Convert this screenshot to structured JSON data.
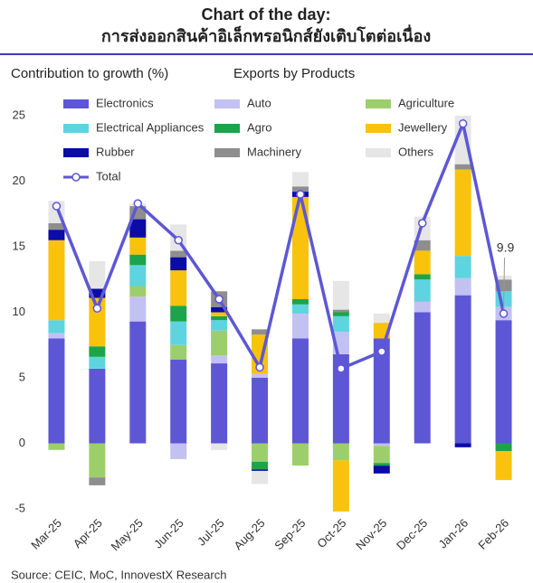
{
  "chart_data": {
    "type": "bar",
    "stacked": true,
    "title": "Chart of the day:",
    "subtitle": "การส่งออกสินค้าอิเล็กทรอนิกส์ยังเติบโตต่อเนื่อง",
    "ylabel": "Contribution to growth (%)",
    "caption": "Exports by Products",
    "source": "Source: CEIC, MoC, InnovestX Research",
    "categories": [
      "Mar-25",
      "Apr-25",
      "May-25",
      "Jun-25",
      "Jul-25",
      "Aug-25",
      "Sep-25",
      "Oct-25",
      "Nov-25",
      "Dec-25",
      "Jan-26",
      "Feb-26"
    ],
    "ylim": [
      -5,
      25
    ],
    "yticks": [
      -5,
      0,
      5,
      10,
      15,
      20,
      25
    ],
    "series": [
      {
        "name": "Electronics",
        "color": "#5d57d6",
        "values": [
          8.0,
          5.7,
          9.3,
          6.4,
          6.1,
          5.0,
          8.0,
          6.8,
          8.0,
          10.0,
          11.3,
          9.4
        ]
      },
      {
        "name": "Auto",
        "color": "#c3c0f2",
        "values": [
          0.4,
          0,
          1.9,
          -1.2,
          0.6,
          0.3,
          1.9,
          1.7,
          -0.2,
          0.8,
          1.3,
          1.0
        ]
      },
      {
        "name": "Agriculture",
        "color": "#9ccf6b",
        "values": [
          -0.5,
          -2.6,
          0.8,
          1.1,
          1.9,
          -1.4,
          -1.7,
          -1.3,
          -1.3,
          0,
          0,
          0
        ]
      },
      {
        "name": "Electrical Appliances",
        "color": "#5ed4e0",
        "values": [
          1.0,
          0.9,
          1.6,
          1.8,
          0.8,
          0,
          0.7,
          1.2,
          0,
          1.7,
          1.7,
          1.2
        ]
      },
      {
        "name": "Agro",
        "color": "#1ba44b",
        "values": [
          0,
          0.8,
          0.8,
          1.2,
          0.3,
          -0.6,
          0.4,
          0.3,
          -0.2,
          0.4,
          0,
          -0.6
        ]
      },
      {
        "name": "Jewellery",
        "color": "#f9c20c",
        "values": [
          6.1,
          3.7,
          1.3,
          2.7,
          0.3,
          3.0,
          7.8,
          -3.9,
          1.2,
          1.8,
          6.6,
          -2.2
        ]
      },
      {
        "name": "Rubber",
        "color": "#0b0ba6",
        "values": [
          0.8,
          0.7,
          1.4,
          1.0,
          0.4,
          -0.1,
          0.4,
          0,
          -0.6,
          0,
          -0.3,
          0
        ]
      },
      {
        "name": "Machinery",
        "color": "#8e8e8e",
        "values": [
          0.5,
          -0.6,
          1.0,
          0.5,
          1.2,
          0.4,
          0.4,
          0.2,
          0,
          0.8,
          0.4,
          0.9
        ]
      },
      {
        "name": "Others",
        "color": "#e6e6e6",
        "values": [
          1.7,
          2.1,
          0.2,
          2.0,
          -0.5,
          -1.0,
          1.1,
          2.2,
          0.7,
          1.8,
          3.7,
          0.3
        ]
      },
      {
        "name": "Total",
        "type": "line",
        "color": "#5d57d6",
        "values": [
          18.1,
          10.3,
          18.3,
          15.5,
          11.0,
          5.8,
          19.0,
          5.7,
          7.0,
          16.8,
          24.4,
          9.9
        ],
        "value_labels": [
          null,
          null,
          null,
          null,
          null,
          null,
          null,
          null,
          null,
          null,
          null,
          "9.9"
        ]
      }
    ]
  }
}
